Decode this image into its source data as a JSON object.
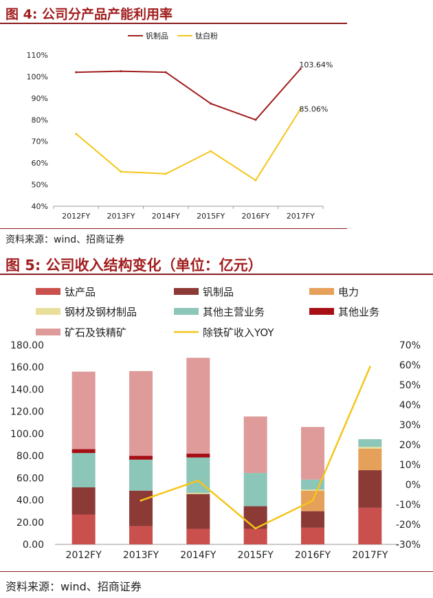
{
  "fig4": {
    "title": "图 4:  公司分产品产能利用率",
    "source": "资料来源：wind、招商证券"
  },
  "fig5": {
    "title": "图 5:  公司收入结构变化（单位：亿元）",
    "source": "资料来源：wind、招商证券"
  },
  "colors": {
    "title_red": "#a11d1d",
    "vanadium_line": "#a11d1d",
    "tio2_line": "#f5c518",
    "ti_products": "#c9504d",
    "vanadium_products": "#8b3a36",
    "power": "#e5a05a",
    "steel": "#e8df9b",
    "other_main": "#8cc6b8",
    "other_business": "#a50f15",
    "ore": "#df9a9a",
    "yoy_line": "#f5c518"
  },
  "chart_data": [
    {
      "type": "line",
      "categories": [
        "2012FY",
        "2013FY",
        "2014FY",
        "2015FY",
        "2016FY",
        "2017FY"
      ],
      "series": [
        {
          "name": "钒制品",
          "values": [
            1.02,
            1.025,
            1.02,
            0.875,
            0.8,
            1.0364
          ]
        },
        {
          "name": "钛白粉",
          "values": [
            0.735,
            0.56,
            0.55,
            0.655,
            0.52,
            0.8506
          ]
        }
      ],
      "data_labels": [
        "103.64%",
        "85.06%"
      ],
      "ylim": [
        0.4,
        1.1
      ],
      "yticks": [
        "40%",
        "50%",
        "60%",
        "70%",
        "80%",
        "90%",
        "100%",
        "110%"
      ],
      "legend": "top-center",
      "grid": false
    },
    {
      "type": "bar",
      "stacked": true,
      "categories": [
        "2012FY",
        "2013FY",
        "2014FY",
        "2015FY",
        "2016FY",
        "2017FY"
      ],
      "series": [
        {
          "name": "钛产品",
          "values": [
            27,
            16.5,
            14,
            14,
            15,
            33
          ]
        },
        {
          "name": "钒制品",
          "values": [
            24.5,
            32,
            31.5,
            20.5,
            15,
            34
          ]
        },
        {
          "name": "电力",
          "values": [
            0,
            0,
            0,
            0,
            18.5,
            19.5
          ]
        },
        {
          "name": "钢材及钢材制品",
          "values": [
            0,
            0,
            1,
            0,
            1,
            1.5
          ]
        },
        {
          "name": "其他主营业务",
          "values": [
            31,
            28,
            32,
            30,
            9,
            7
          ]
        },
        {
          "name": "其他业务",
          "values": [
            3.5,
            3.5,
            3.5,
            0,
            0,
            0
          ]
        },
        {
          "name": "矿石及铁精矿",
          "values": [
            70,
            76.5,
            86.5,
            51,
            47.5,
            0
          ]
        }
      ],
      "line_series": {
        "name": "除铁矿收入YOY",
        "values": [
          null,
          -0.08,
          0.02,
          -0.22,
          -0.08,
          0.59
        ]
      },
      "ylim": [
        0,
        180
      ],
      "yticks": [
        "0.00",
        "20.00",
        "40.00",
        "60.00",
        "80.00",
        "100.00",
        "120.00",
        "140.00",
        "160.00",
        "180.00"
      ],
      "y2lim": [
        -0.3,
        0.7
      ],
      "y2ticks": [
        "-30%",
        "-20%",
        "-10%",
        "0%",
        "10%",
        "20%",
        "30%",
        "40%",
        "50%",
        "60%",
        "70%"
      ],
      "legend": "top",
      "grid": false
    }
  ]
}
